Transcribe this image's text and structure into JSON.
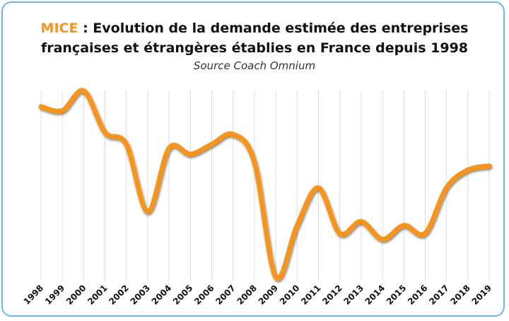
{
  "chart_data": {
    "type": "line",
    "title_lead": "MICE",
    "title": ": Evolution de la demande estimée des entreprises françaises et étrangères établies en France depuis 1998",
    "subtitle": "Source Coach Omnium",
    "categories": [
      "1998",
      "1999",
      "2000",
      "2001",
      "2002",
      "2003",
      "2004",
      "2005",
      "2006",
      "2007",
      "2008",
      "2009",
      "2010",
      "2011",
      "2012",
      "2013",
      "2014",
      "2015",
      "2016",
      "2017",
      "2018",
      "2019"
    ],
    "values": [
      89,
      87,
      97,
      76,
      70,
      36,
      68,
      65,
      70,
      75,
      61,
      3,
      29,
      48,
      25,
      31,
      22,
      29,
      25,
      48,
      57,
      59
    ],
    "color": "#f7941d",
    "ylim": [
      0,
      100
    ],
    "grid": true
  }
}
